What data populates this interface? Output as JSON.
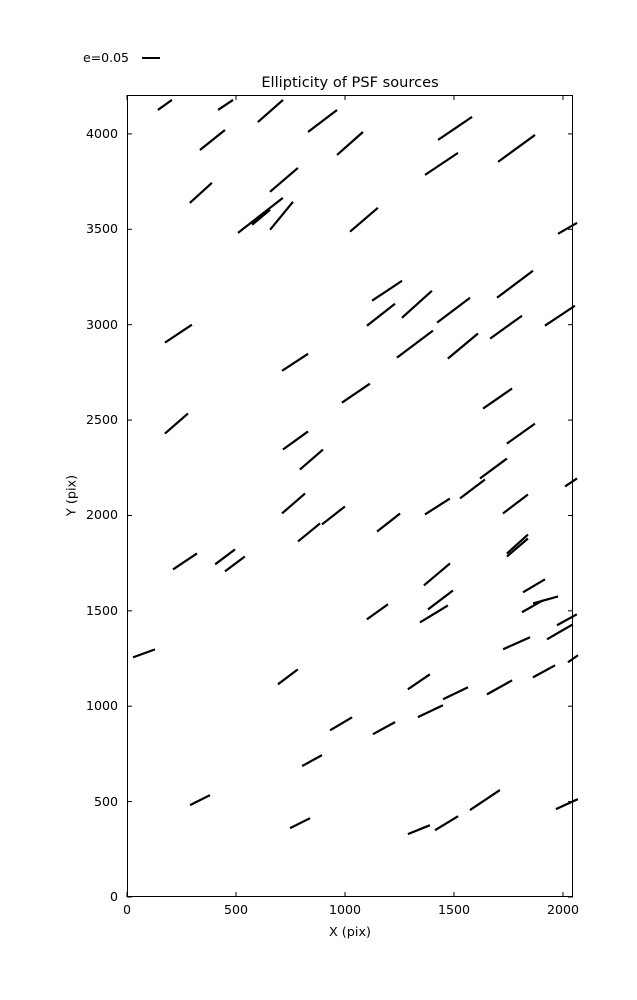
{
  "title": "Ellipticity of PSF sources",
  "legend": {
    "label": "e=0.05",
    "e_value": 0.05
  },
  "axes": {
    "xlabel": "X (pix)",
    "ylabel": "Y (pix)",
    "xticks": [
      0,
      500,
      1000,
      1500,
      2000
    ],
    "yticks": [
      0,
      500,
      1000,
      1500,
      2000,
      2500,
      3000,
      3500,
      4000
    ],
    "xlim": [
      0,
      2046
    ],
    "ylim": [
      0,
      4204
    ],
    "grid": false
  },
  "colors": {
    "stick": "#000000",
    "axis": "#000000",
    "background": "#ffffff"
  },
  "chart_data": {
    "type": "scatter",
    "subtype": "ellipticity-stick-plot",
    "title": "Ellipticity of PSF sources",
    "xlabel": "X (pix)",
    "ylabel": "Y (pix)",
    "xlim": [
      0,
      2046
    ],
    "ylim": [
      0,
      4204
    ],
    "legend": [
      {
        "label": "e=0.05"
      }
    ],
    "legend_position": "upper left (outside axes)",
    "columns": [
      "x_pix",
      "y_pix",
      "angle_deg",
      "ellipticity"
    ],
    "sticks": [
      [
        174,
        4152,
        35.5,
        0.048
      ],
      [
        452,
        4152,
        33.7,
        0.05
      ],
      [
        658,
        4120,
        41.3,
        0.093
      ],
      [
        392,
        3968,
        38.7,
        0.089
      ],
      [
        339,
        3691,
        42.3,
        0.083
      ],
      [
        612,
        3573,
        37.9,
        0.158
      ],
      [
        615,
        3563,
        39.8,
        0.065
      ],
      [
        709,
        3571,
        50.6,
        0.1
      ],
      [
        720,
        3759,
        40.6,
        0.102
      ],
      [
        897,
        4068,
        37.2,
        0.101
      ],
      [
        1023,
        3950,
        41.5,
        0.096
      ],
      [
        1087,
        3550,
        40.6,
        0.102
      ],
      [
        1505,
        4029,
        34.1,
        0.114
      ],
      [
        1443,
        3843,
        33.7,
        0.11
      ],
      [
        1787,
        3924,
        36.1,
        0.127
      ],
      [
        2021,
        3505,
        30.0,
        0.061
      ],
      [
        236,
        2953,
        33.7,
        0.09
      ],
      [
        1193,
        3178,
        33.7,
        0.1
      ],
      [
        1165,
        3052,
        38.2,
        0.099
      ],
      [
        1330,
        3107,
        42.0,
        0.112
      ],
      [
        1321,
        2898,
        36.9,
        0.125
      ],
      [
        771,
        2803,
        33.2,
        0.086
      ],
      [
        1050,
        2641,
        34.2,
        0.094
      ],
      [
        1780,
        3212,
        36.9,
        0.125
      ],
      [
        1498,
        3076,
        37.1,
        0.115
      ],
      [
        1541,
        2888,
        39.8,
        0.109
      ],
      [
        1986,
        3047,
        33.7,
        0.1
      ],
      [
        1739,
        2987,
        35.7,
        0.109
      ],
      [
        1700,
        2613,
        34.6,
        0.098
      ],
      [
        227,
        2482,
        41.0,
        0.085
      ],
      [
        266,
        1759,
        33.7,
        0.08
      ],
      [
        450,
        1783,
        36.9,
        0.069
      ],
      [
        495,
        1746,
        36.9,
        0.069
      ],
      [
        773,
        2393,
        35.8,
        0.086
      ],
      [
        846,
        2293,
        41.0,
        0.085
      ],
      [
        764,
        2063,
        41.0,
        0.085
      ],
      [
        947,
        2000,
        38.0,
        0.081
      ],
      [
        835,
        1911,
        39.3,
        0.079
      ],
      [
        1200,
        1963,
        38.0,
        0.081
      ],
      [
        1807,
        2429,
        35.5,
        0.096
      ],
      [
        1681,
        2246,
        36.5,
        0.093
      ],
      [
        1585,
        2139,
        37.2,
        0.087
      ],
      [
        1424,
        2047,
        32.6,
        0.082
      ],
      [
        2037,
        2173,
        33.7,
        0.04
      ],
      [
        1782,
        2060,
        37.2,
        0.087
      ],
      [
        1791,
        1850,
        42.1,
        0.079
      ],
      [
        1791,
        1832,
        40.6,
        0.077
      ],
      [
        78,
        1277,
        20.0,
        0.065
      ],
      [
        1149,
        1495,
        35.5,
        0.072
      ],
      [
        738,
        1154,
        36.9,
        0.069
      ],
      [
        1339,
        1128,
        34.3,
        0.074
      ],
      [
        982,
        908,
        30.6,
        0.071
      ],
      [
        1179,
        885,
        28.6,
        0.07
      ],
      [
        1422,
        1691,
        40.2,
        0.095
      ],
      [
        1438,
        1557,
        37.2,
        0.087
      ],
      [
        1408,
        1484,
        31.3,
        0.091
      ],
      [
        1867,
        1631,
        30.6,
        0.071
      ],
      [
        1920,
        1557,
        15.6,
        0.072
      ],
      [
        1860,
        1524,
        29.7,
        0.067
      ],
      [
        2018,
        1453,
        28.8,
        0.063
      ],
      [
        1986,
        1390,
        30.0,
        0.083
      ],
      [
        1787,
        1330,
        24.0,
        0.082
      ],
      [
        2046,
        1249,
        35.0,
        0.034
      ],
      [
        1913,
        1183,
        28.6,
        0.07
      ],
      [
        1709,
        1099,
        29.2,
        0.08
      ],
      [
        1507,
        1068,
        25.6,
        0.077
      ],
      [
        1392,
        974,
        25.6,
        0.077
      ],
      [
        849,
        715,
        28.8,
        0.063
      ],
      [
        794,
        387,
        26.6,
        0.062
      ],
      [
        1339,
        353,
        22.2,
        0.066
      ],
      [
        1642,
        508,
        33.7,
        0.1
      ],
      [
        1466,
        387,
        31.3,
        0.075
      ],
      [
        2018,
        487,
        24.4,
        0.067
      ],
      [
        335,
        508,
        26.6,
        0.062
      ]
    ]
  }
}
